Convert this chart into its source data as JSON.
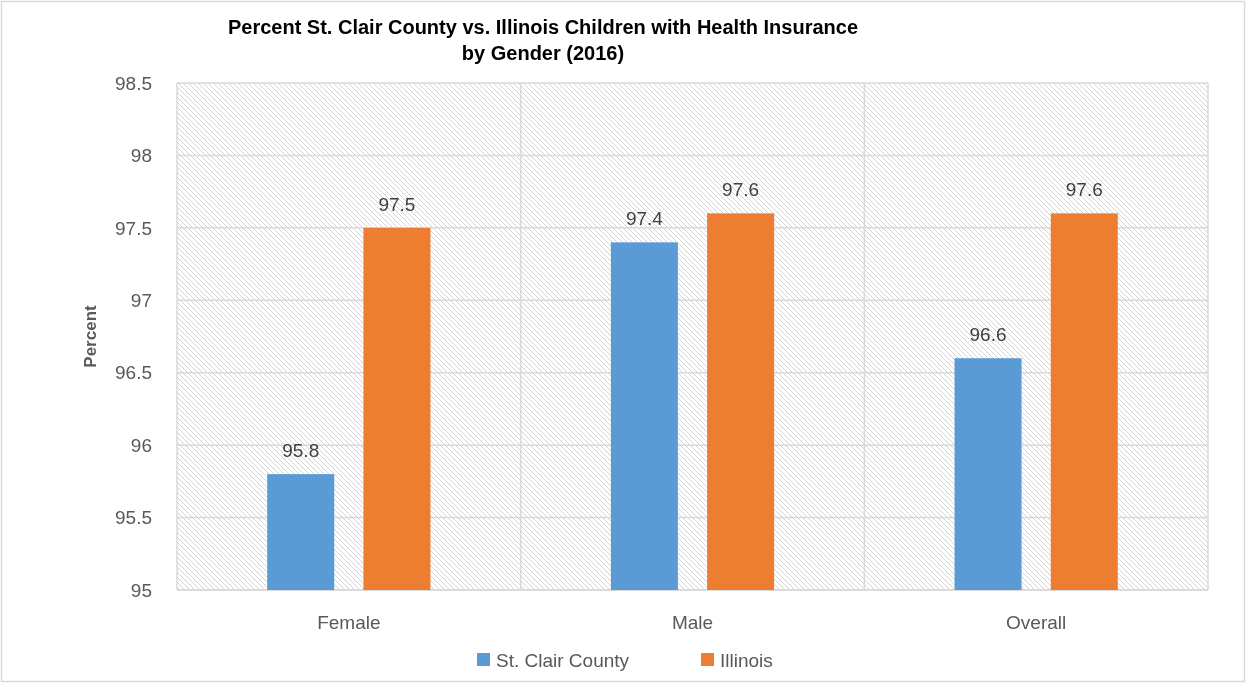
{
  "chart_data": {
    "type": "bar",
    "title": "Percent St. Clair County vs. Illinois Children with Health Insurance\nby Gender (2016)",
    "ylabel": "Percent",
    "categories": [
      "Female",
      "Male",
      "Overall"
    ],
    "series": [
      {
        "name": "St. Clair County",
        "color": "#5b9bd5",
        "values": [
          95.8,
          97.4,
          96.6
        ]
      },
      {
        "name": "Illinois",
        "color": "#ed7d31",
        "values": [
          97.5,
          97.6,
          97.6
        ]
      }
    ],
    "ylim": [
      95,
      98.5
    ],
    "yticks": [
      95,
      95.5,
      96,
      96.5,
      97,
      97.5,
      98,
      98.5
    ],
    "grid": true,
    "legend": "bottom",
    "data_labels": true
  }
}
